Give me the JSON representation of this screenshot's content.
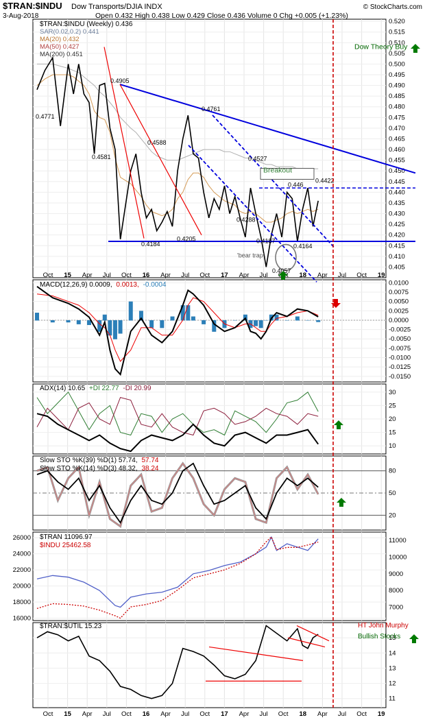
{
  "header": {
    "symbol": "$TRAN:$INDU",
    "description": "Dow Transports/DJIA INDX",
    "source": "© StockCharts.com",
    "date": "3-Aug-2018",
    "quote": "Open 0.432  High 0.438  Low 0.429  Close 0.436  Volume 0  Chg +0.005 (+1.23%)"
  },
  "colors": {
    "price": "#000000",
    "sar": "#8fa3c0",
    "ma20": "#d49a55",
    "ma50": "#d88888",
    "ma200": "#b0b0b0",
    "trend_blue": "#0000dd",
    "trend_red": "#ee0000",
    "macd_hist": "#2c7fb8",
    "adx_pos": "#2e7d32",
    "adx_neg": "#8b1c3a",
    "sto_k": "#000000",
    "sto_d": "#e08080",
    "sto_gray": "#999999",
    "tran_blue": "#5060c8",
    "indu_red": "#cc0000",
    "arrow_green": "#007a00",
    "arrow_red": "#dd0000",
    "cursor_red": "#cc0000"
  },
  "chart_data": [
    {
      "panel": "price",
      "type": "line",
      "title": "$TRAN:$INDU (Weekly) 0.436",
      "legend": [
        {
          "label": "SAR(0.02,0.2) 0.441",
          "color": "#8fa3c0"
        },
        {
          "label": "MA(20) 0.432",
          "color": "#d49a55"
        },
        {
          "label": "MA(50) 0.427",
          "color": "#d88888"
        },
        {
          "label": "MA(200) 0.451",
          "color": "#606060"
        }
      ],
      "x_ticks": [
        "Oct",
        "15",
        "Apr",
        "Jul",
        "Oct",
        "16",
        "Apr",
        "Jul",
        "Oct",
        "17",
        "Apr",
        "Jul",
        "Oct",
        "18",
        "Apr",
        "Jul",
        "Oct",
        "19"
      ],
      "y_ticks": [
        0.405,
        0.41,
        0.415,
        0.42,
        0.425,
        0.43,
        0.435,
        0.44,
        0.445,
        0.45,
        0.455,
        0.46,
        0.465,
        0.47,
        0.475,
        0.48,
        0.485,
        0.49,
        0.495,
        0.5,
        0.505,
        0.51,
        0.515,
        0.52
      ],
      "ylim": [
        0.4,
        0.521
      ],
      "series": {
        "x": [
          0,
          1.5,
          3,
          4.5,
          6,
          7,
          8,
          9,
          10,
          11,
          12,
          13,
          14,
          15,
          16,
          18,
          19,
          20,
          21,
          22,
          23,
          24,
          25,
          26,
          27,
          28,
          29,
          30,
          31,
          32,
          33,
          34,
          35,
          36,
          37,
          38,
          39,
          40,
          41,
          42,
          43,
          44,
          45,
          46,
          47,
          48,
          49,
          50,
          51,
          52,
          53,
          54
        ],
        "price": [
          0.488,
          0.497,
          0.503,
          0.471,
          0.5,
          0.486,
          0.5,
          0.486,
          0.482,
          0.458,
          0.49,
          0.491,
          0.47,
          0.46,
          0.418,
          0.45,
          0.458,
          0.44,
          0.428,
          0.432,
          0.422,
          0.426,
          0.431,
          0.424,
          0.45,
          0.465,
          0.476,
          0.458,
          0.456,
          0.44,
          0.428,
          0.437,
          0.432,
          0.443,
          0.43,
          0.438,
          0.428,
          0.419,
          0.442,
          0.43,
          0.419,
          0.405,
          0.42,
          0.43,
          0.419,
          0.44,
          0.437,
          0.417,
          0.432,
          0.442,
          0.424,
          0.436
        ],
        "ma20": [
          0.49,
          0.493,
          0.495,
          0.495,
          0.495,
          0.494,
          0.492,
          0.49,
          0.486,
          0.478,
          0.475,
          0.474,
          0.468,
          0.456,
          0.447,
          0.444,
          0.441,
          0.438,
          0.434,
          0.431,
          0.43,
          0.429,
          0.43,
          0.432,
          0.437,
          0.44,
          0.446,
          0.449,
          0.449,
          0.447,
          0.443,
          0.44,
          0.438,
          0.436,
          0.435,
          0.434,
          0.431,
          0.43,
          0.431,
          0.43,
          0.428,
          0.426,
          0.426,
          0.427,
          0.428,
          0.43,
          0.431,
          0.43,
          0.431,
          0.432,
          0.431,
          0.432
        ],
        "ma200": [
          0.5,
          0.5,
          0.5,
          0.499,
          0.498,
          0.497,
          0.496,
          0.494,
          0.492,
          0.49,
          0.487,
          0.485,
          0.482,
          0.479,
          0.475,
          0.47,
          0.468,
          0.465,
          0.462,
          0.459,
          0.457,
          0.456,
          0.455,
          0.455,
          0.455,
          0.456,
          0.457,
          0.458,
          0.459,
          0.46,
          0.46,
          0.46,
          0.46,
          0.459,
          0.459,
          0.458,
          0.457,
          0.456,
          0.456,
          0.455,
          0.454,
          0.453,
          0.453,
          0.452,
          0.452,
          0.452,
          0.452,
          0.451,
          0.451,
          0.451,
          0.451,
          0.451
        ]
      },
      "annotations": [
        "0.4771",
        "0.4905",
        "0.4581",
        "0.4588",
        "0.4184",
        "0.4205",
        "0.4761",
        "0.4527",
        "0.4288",
        "0.4187",
        "0.4057",
        "0.446",
        "0.4422",
        "0.4164",
        "Breakout",
        "'bear trap'",
        "Dow Theory Buy"
      ]
    },
    {
      "panel": "macd",
      "type": "line",
      "title": "MACD(12,26,9) 0.0009, 0.0013, -0.0004",
      "title_parts": [
        "MACD(12,26,9) 0.0009,",
        "0.0013,",
        "-0.0004"
      ],
      "y_ticks": [
        0.01,
        0.0075,
        0.005,
        0.0025,
        0.0,
        -0.0025,
        -0.005,
        -0.0075,
        -0.01,
        -0.0125,
        -0.015
      ],
      "y_tick_labels": [
        "0.0100",
        "0.0075",
        "0.0050",
        "0.0025",
        "0.0000",
        "-0.0025",
        "-0.0050",
        "-0.0075",
        "-0.0100",
        "-0.0125",
        "-0.0150"
      ],
      "ylim": [
        -0.0165,
        0.0108
      ],
      "x": [
        0,
        3,
        6,
        8,
        10,
        12,
        13,
        14,
        15,
        16,
        18,
        20,
        22,
        24,
        26,
        28,
        29,
        30,
        32,
        34,
        36,
        38,
        40,
        41,
        42,
        43,
        44,
        45,
        46,
        48,
        50,
        52,
        54
      ],
      "macd": [
        0.009,
        0.006,
        0.0045,
        0.003,
        0.0008,
        -0.004,
        -0.0005,
        -0.008,
        -0.013,
        -0.0145,
        -0.003,
        0.0005,
        -0.004,
        -0.006,
        -0.003,
        0.004,
        0.008,
        0.007,
        0.004,
        -0.001,
        -0.003,
        -0.002,
        0.0005,
        -0.003,
        -0.0035,
        -0.005,
        -0.003,
        0.0005,
        0.002,
        0.001,
        0.003,
        0.0025,
        0.0009
      ],
      "signal": [
        0.007,
        0.0065,
        0.005,
        0.004,
        0.002,
        -0.001,
        -0.002,
        -0.004,
        -0.008,
        -0.011,
        -0.008,
        -0.002,
        -0.002,
        -0.004,
        -0.004,
        0.0,
        0.004,
        0.006,
        0.005,
        0.002,
        -0.001,
        -0.002,
        -0.001,
        -0.001,
        -0.002,
        -0.003,
        -0.003,
        -0.001,
        0.0005,
        0.001,
        0.002,
        0.0025,
        0.0013
      ]
    },
    {
      "panel": "adx",
      "type": "line",
      "title": "ADX(14) 10.65 +DI 22.77 -DI 20.99",
      "title_parts": [
        "ADX(14) 10.65",
        "+DI 22.77",
        "-DI 20.99"
      ],
      "y_ticks": [
        10,
        15,
        20,
        25,
        30
      ],
      "ylim": [
        7,
        33
      ],
      "x": [
        0,
        2,
        4,
        6,
        8,
        10,
        12,
        14,
        16,
        18,
        20,
        22,
        24,
        26,
        28,
        30,
        32,
        34,
        36,
        38,
        40,
        42,
        44,
        46,
        48,
        50,
        52,
        54
      ],
      "adx": [
        22,
        21,
        18,
        16,
        14,
        12,
        14,
        11,
        9,
        8,
        12,
        14,
        13,
        12,
        14,
        18,
        14,
        11,
        10,
        14,
        15,
        13,
        11,
        14,
        14,
        15,
        16,
        10.65
      ],
      "pdi": [
        28,
        22,
        26,
        30,
        23,
        16,
        22,
        25,
        15,
        14,
        22,
        21,
        15,
        20,
        22,
        18,
        15,
        16,
        14,
        23,
        21,
        19,
        15,
        20,
        26,
        27,
        30,
        22.77
      ],
      "mdi": [
        17,
        24,
        20,
        16,
        24,
        26,
        20,
        18,
        28,
        27,
        18,
        17,
        22,
        17,
        15,
        14,
        23,
        24,
        22,
        18,
        19,
        21,
        24,
        22,
        21,
        18,
        22,
        20.99
      ]
    },
    {
      "panel": "stochastic",
      "type": "line",
      "title": "Slow STO %K(39) %D(1) 57.74, 57.74",
      "title2": "Slow STO %K(14) %D(3) 48.32, 38.24",
      "title_parts": [
        "Slow STO %K(39) %D(1) 57.74,",
        "57.74",
        "Slow STO %K(14) %D(3) 48.32,",
        "38.24"
      ],
      "y_ticks": [
        20,
        50,
        80
      ],
      "ylim": [
        0,
        100
      ],
      "x": [
        0,
        2,
        4,
        6,
        8,
        10,
        12,
        14,
        16,
        18,
        20,
        22,
        24,
        26,
        28,
        30,
        32,
        34,
        36,
        38,
        40,
        42,
        44,
        46,
        48,
        50,
        52,
        54
      ],
      "k39": [
        75,
        80,
        65,
        55,
        70,
        40,
        60,
        30,
        10,
        40,
        60,
        40,
        35,
        50,
        80,
        90,
        60,
        35,
        40,
        50,
        60,
        30,
        15,
        50,
        70,
        60,
        70,
        57.74
      ],
      "k14": [
        80,
        85,
        40,
        70,
        85,
        20,
        65,
        15,
        5,
        60,
        75,
        25,
        30,
        70,
        90,
        70,
        35,
        20,
        55,
        70,
        65,
        15,
        10,
        70,
        85,
        55,
        75,
        48.32
      ]
    },
    {
      "panel": "ratio_components",
      "type": "line",
      "legend": [
        {
          "label": "$TRAN 11096.97",
          "color": "#5060c8"
        },
        {
          "label": "$INDU 25462.58",
          "color": "#cc0000"
        }
      ],
      "y_left_ticks": [
        16000,
        18000,
        20000,
        22000,
        24000,
        26000
      ],
      "y_right_ticks": [
        7000,
        8000,
        9000,
        10000,
        11000
      ],
      "ylim_left": [
        15700,
        26700
      ],
      "ylim_right": [
        6200,
        11500
      ],
      "x": [
        0,
        3,
        6,
        9,
        12,
        15,
        16,
        18,
        21,
        24,
        27,
        30,
        33,
        36,
        39,
        42,
        44,
        45,
        46,
        48,
        50,
        52,
        54
      ],
      "tran": [
        8700,
        8900,
        8800,
        8500,
        8000,
        7100,
        7000,
        7600,
        7800,
        7900,
        8200,
        9000,
        9200,
        9500,
        9700,
        10200,
        10600,
        11200,
        10400,
        10800,
        10600,
        10400,
        11097
      ],
      "indu": [
        17200,
        17800,
        17700,
        17500,
        17000,
        16300,
        16000,
        17400,
        17700,
        18200,
        19500,
        21000,
        21500,
        22000,
        22800,
        24000,
        25500,
        26100,
        24500,
        24800,
        24800,
        25100,
        25463
      ]
    },
    {
      "panel": "tran_util",
      "type": "line",
      "title": "$TRAN:$UTIL 15.23",
      "annotations": [
        "HT John Murphy",
        "Bullish Stocks"
      ],
      "y_ticks": [
        11,
        12,
        13,
        14,
        15
      ],
      "ylim": [
        10.4,
        16.0
      ],
      "x_ticks": [
        "Oct",
        "15",
        "Apr",
        "Jul",
        "Oct",
        "16",
        "Apr",
        "Jul",
        "Oct",
        "17",
        "Apr",
        "Jul",
        "Oct",
        "18",
        "Apr",
        "Jul",
        "Oct",
        "19"
      ],
      "x": [
        0,
        2,
        4,
        6,
        8,
        10,
        12,
        14,
        16,
        18,
        20,
        22,
        24,
        26,
        28,
        30,
        32,
        34,
        36,
        38,
        40,
        42,
        44,
        46,
        48,
        50,
        51,
        52,
        53,
        54
      ],
      "values": [
        15.0,
        15.4,
        15.2,
        14.8,
        15.1,
        13.8,
        13.5,
        12.8,
        11.8,
        11.6,
        11.2,
        11.0,
        11.2,
        12.0,
        14.3,
        14.1,
        13.8,
        13.2,
        12.5,
        12.3,
        12.6,
        13.5,
        15.8,
        15.3,
        14.8,
        15.6,
        14.5,
        14.3,
        15.0,
        15.23
      ]
    }
  ]
}
